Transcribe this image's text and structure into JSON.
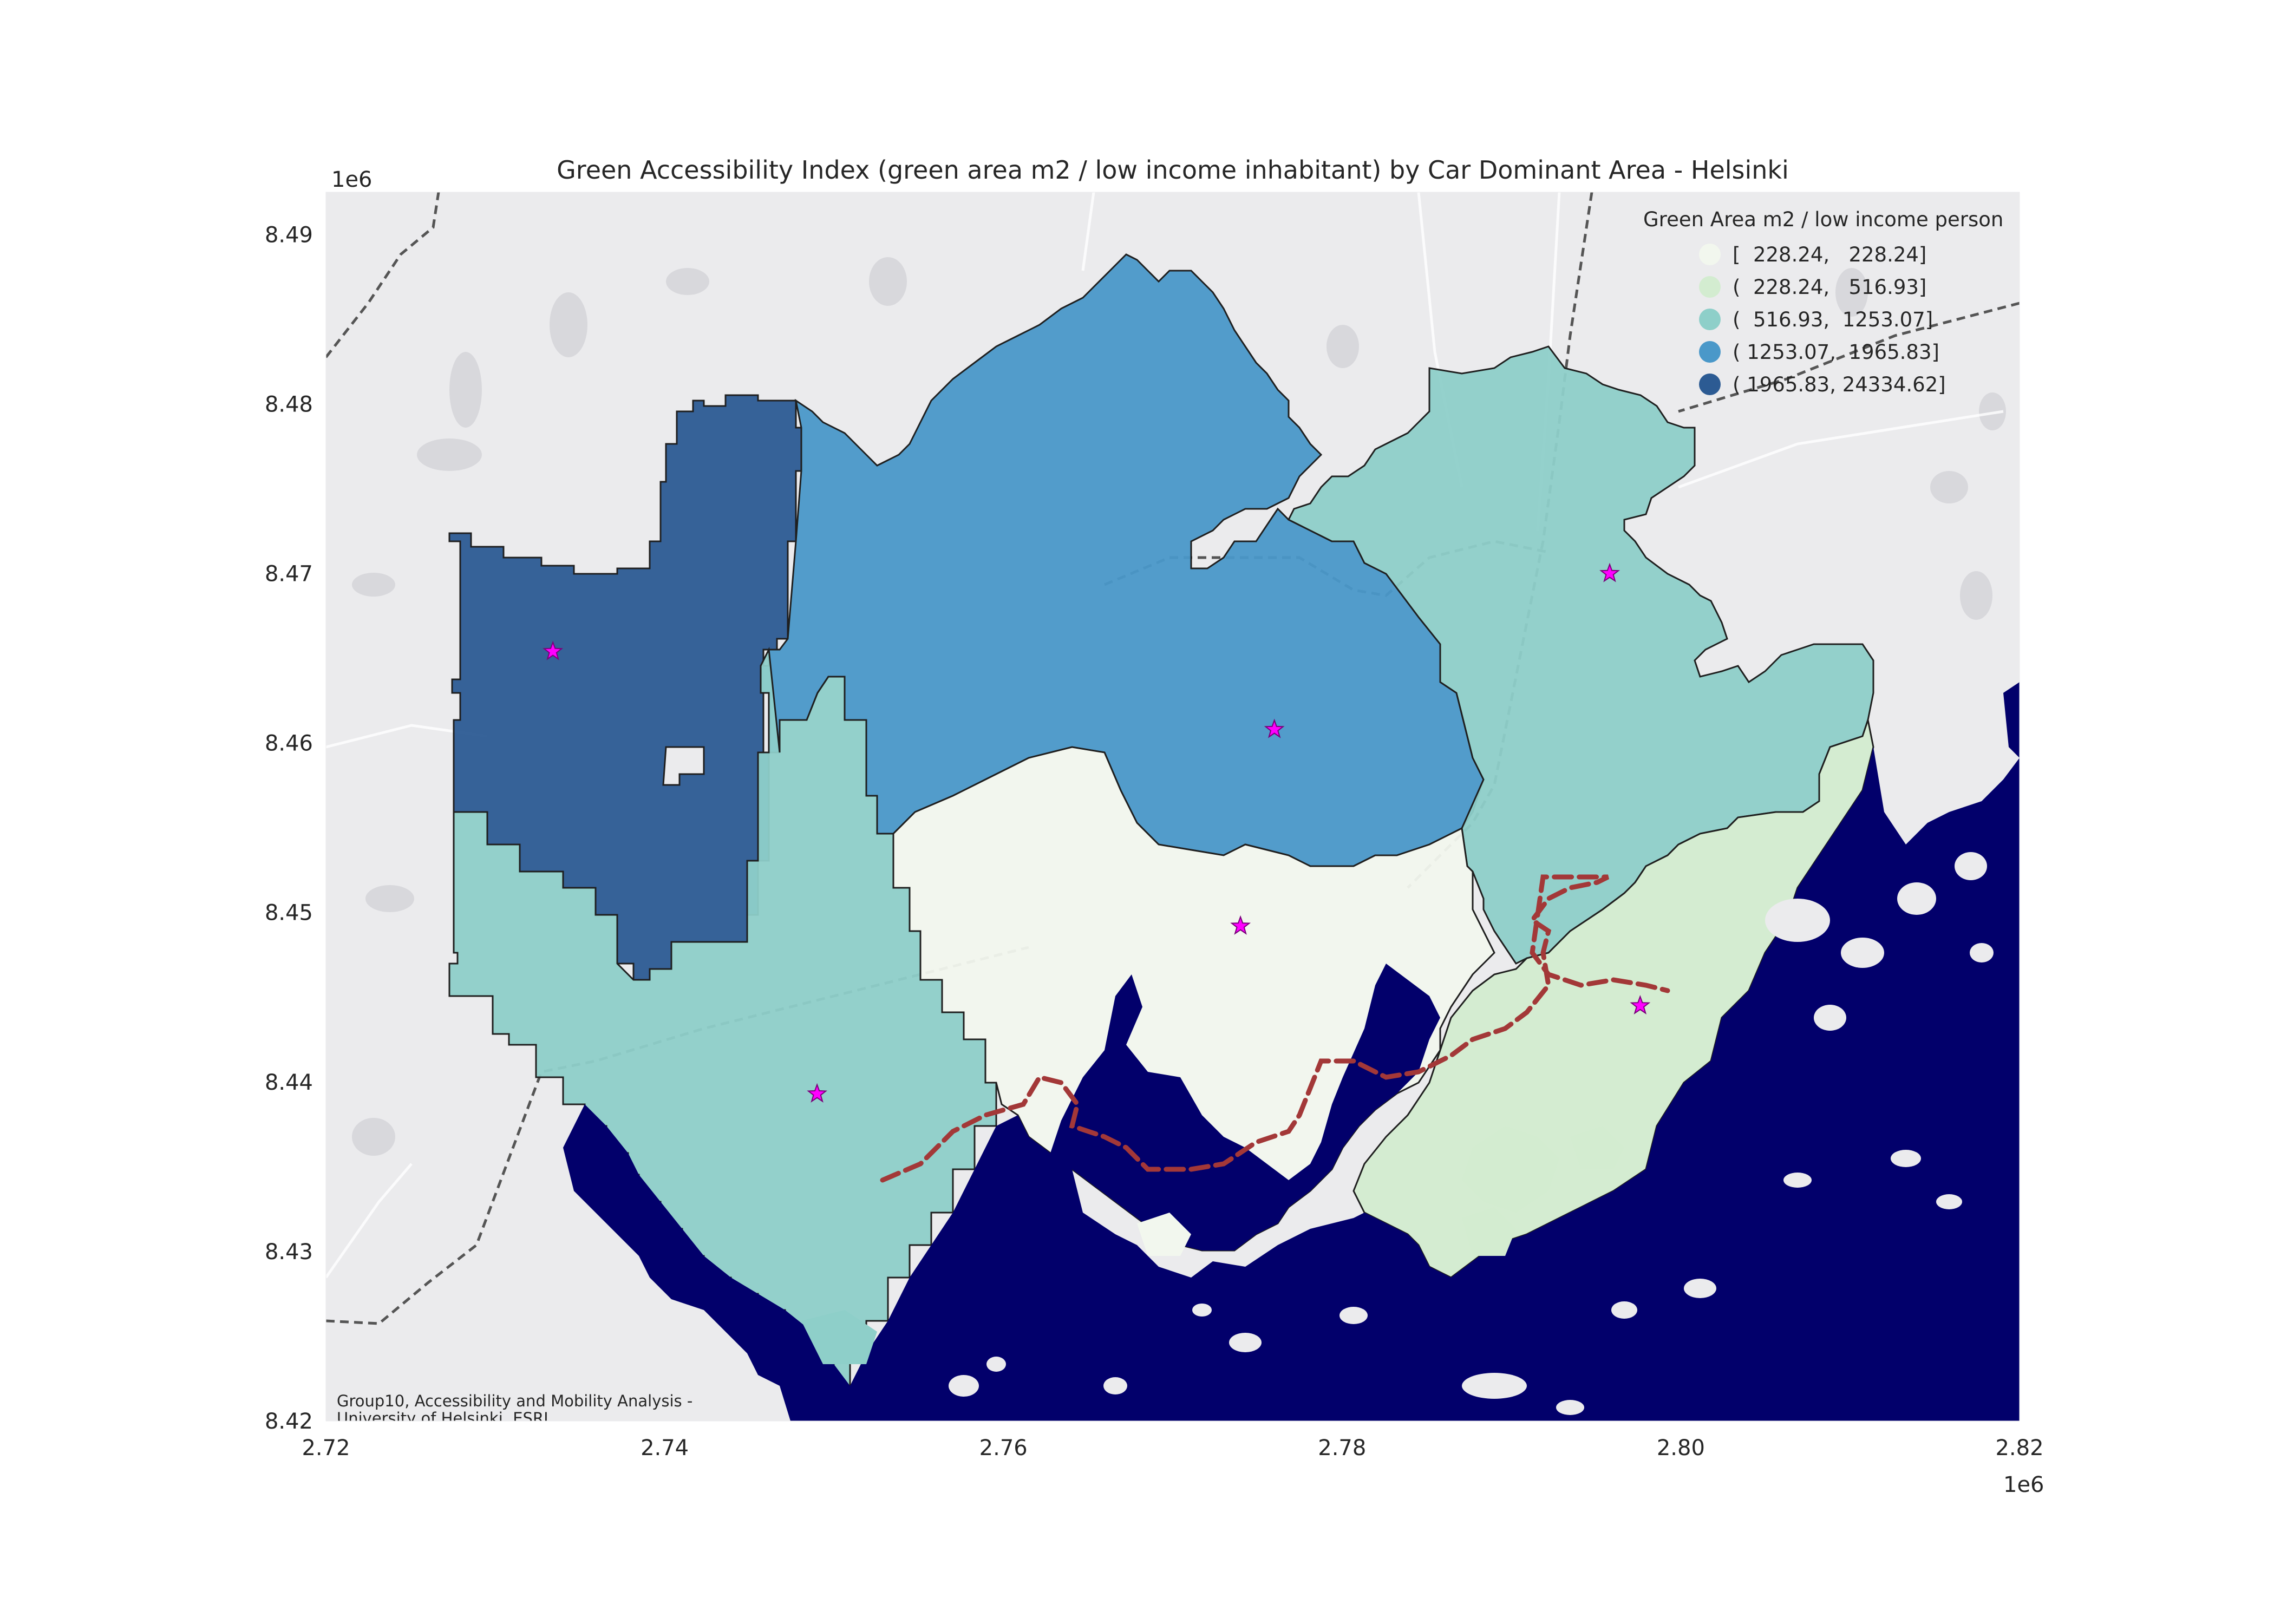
{
  "title": "Green Accessibility Index (green area m2 / low income inhabitant) by Car Dominant Area - Helsinki",
  "axes": {
    "x_offset": "1e6",
    "y_offset": "1e6",
    "x_range": [
      2.72,
      2.82
    ],
    "y_range": [
      8.42,
      8.4925
    ],
    "x_ticks": [
      {
        "value": 2.72,
        "label": "2.72"
      },
      {
        "value": 2.74,
        "label": "2.74"
      },
      {
        "value": 2.76,
        "label": "2.76"
      },
      {
        "value": 2.78,
        "label": "2.78"
      },
      {
        "value": 2.8,
        "label": "2.80"
      },
      {
        "value": 2.82,
        "label": "2.82"
      }
    ],
    "y_ticks": [
      {
        "value": 8.42,
        "label": "8.42"
      },
      {
        "value": 8.43,
        "label": "8.43"
      },
      {
        "value": 8.44,
        "label": "8.44"
      },
      {
        "value": 8.45,
        "label": "8.45"
      },
      {
        "value": 8.46,
        "label": "8.46"
      },
      {
        "value": 8.47,
        "label": "8.47"
      },
      {
        "value": 8.48,
        "label": "8.48"
      },
      {
        "value": 8.49,
        "label": "8.49"
      }
    ]
  },
  "legend": {
    "title": "Green Area m2 / low income person",
    "placement": "top-right",
    "classes": [
      {
        "label": "[  228.24,   228.24]",
        "color": "#f2f7ee"
      },
      {
        "label": "(  228.24,   516.93]",
        "color": "#d3ecd0"
      },
      {
        "label": "(  516.93,  1253.07]",
        "color": "#8ecfc9"
      },
      {
        "label": "( 1253.07,  1965.83]",
        "color": "#4a98c9"
      },
      {
        "label": "( 1965.83, 24334.62]",
        "color": "#2c5b93"
      }
    ]
  },
  "credit": {
    "line1": "Group10, Accessibility and Mobility Analysis -",
    "line2": "University of Helsinki, ESRI."
  },
  "markers": {
    "symbol": "star",
    "color": "#ff00ff",
    "points": [
      {
        "x": 2.7334,
        "y": 8.4654
      },
      {
        "x": 2.776,
        "y": 8.4608
      },
      {
        "x": 2.774,
        "y": 8.4492
      },
      {
        "x": 2.749,
        "y": 8.4393
      },
      {
        "x": 2.7958,
        "y": 8.47
      },
      {
        "x": 2.7976,
        "y": 8.4445
      }
    ]
  },
  "colors": {
    "basemap": "#ebebed",
    "sea": "#02006b",
    "boundary": "#1f1f1f",
    "rail_line": "#555555",
    "metro_line": "#a33838"
  }
}
